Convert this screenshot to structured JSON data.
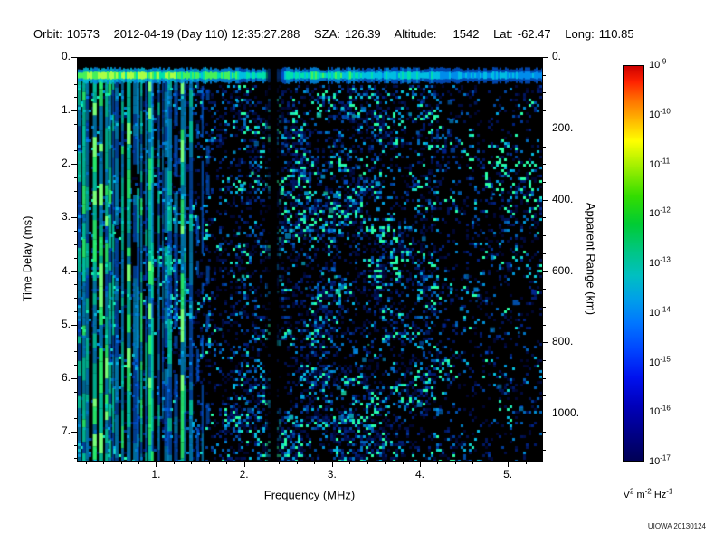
{
  "header": {
    "orbit_label": "Orbit:",
    "orbit_value": "10573",
    "datetime": "2012-04-19 (Day 110) 12:35:27.288",
    "sza_label": "SZA:",
    "sza_value": "126.39",
    "altitude_label": "Altitude:",
    "altitude_value": "1542",
    "lat_label": "Lat:",
    "lat_value": "-62.47",
    "long_label": "Long:",
    "long_value": "110.85"
  },
  "chart_data": {
    "type": "heatmap",
    "title": "",
    "xlabel": "Frequency (MHz)",
    "ylabel_left": "Time Delay (ms)",
    "ylabel_right": "Apparent Range (km)",
    "x_range_mhz": [
      0.1,
      5.4
    ],
    "y_range_ms": [
      0.0,
      7.56
    ],
    "y_right_range_km": [
      0,
      1134
    ],
    "range_per_ms_km": 150,
    "grid": false,
    "x_tick_labels": [
      "1.",
      "2.",
      "3.",
      "4.",
      "5."
    ],
    "x_tick_values": [
      1,
      2,
      3,
      4,
      5
    ],
    "x_minor_step_mhz": 0.2,
    "y_tick_labels": [
      "0.",
      "1.",
      "2.",
      "3.",
      "4.",
      "5.",
      "6.",
      "7."
    ],
    "y_tick_values": [
      0,
      1,
      2,
      3,
      4,
      5,
      6,
      7
    ],
    "y_minor_step_ms": 0.25,
    "y_right_tick_labels": [
      "0.",
      "200.",
      "400.",
      "600.",
      "800.",
      "1000."
    ],
    "y_right_tick_values": [
      0,
      200,
      400,
      600,
      800,
      1000
    ],
    "y_right_minor_step_km": 50,
    "spectrogram": {
      "seed": 7,
      "background_color": "#000000",
      "surface_echo_band": {
        "delay_ms_center": 0.33,
        "thickness_ms": 0.18,
        "description": "Bright green/cyan horizontal echo trace spanning all frequencies near zero time delay"
      },
      "plasma_lines": {
        "freq_range_mhz": [
          0.1,
          1.65
        ],
        "description": "Dense vertical green/cyan electron plasma oscillation harmonic stripes at low frequencies extending over the full delay range"
      },
      "attenuation_gap_mhz": 2.33,
      "noise_description": "Speckled blue background noise, densest between 1.7 and 4 MHz, sparse and dim above 4 MHz, black above the echo trace"
    },
    "colorbar": {
      "scale": "log",
      "tick_base": "10",
      "tick_exponents": [
        "-9",
        "-10",
        "-11",
        "-12",
        "-13",
        "-14",
        "-15",
        "-16",
        "-17"
      ],
      "unit_parts": [
        {
          "text": "V",
          "sup": false
        },
        {
          "text": "2",
          "sup": true
        },
        {
          "text": " m",
          "sup": false
        },
        {
          "text": "-2",
          "sup": true
        },
        {
          "text": " Hz",
          "sup": false
        },
        {
          "text": "-1",
          "sup": true
        }
      ],
      "gradient": [
        {
          "pos": 0,
          "color": "#cc0000"
        },
        {
          "pos": 4,
          "color": "#ff2200"
        },
        {
          "pos": 9,
          "color": "#ff7700"
        },
        {
          "pos": 14,
          "color": "#ffbb00"
        },
        {
          "pos": 19,
          "color": "#ffff00"
        },
        {
          "pos": 26,
          "color": "#99ee00"
        },
        {
          "pos": 33,
          "color": "#33dd00"
        },
        {
          "pos": 40,
          "color": "#00cc33"
        },
        {
          "pos": 47,
          "color": "#00c684"
        },
        {
          "pos": 53,
          "color": "#00c0c0"
        },
        {
          "pos": 59,
          "color": "#00a0e8"
        },
        {
          "pos": 65,
          "color": "#0077ff"
        },
        {
          "pos": 72,
          "color": "#0044ff"
        },
        {
          "pos": 79,
          "color": "#0011ee"
        },
        {
          "pos": 86,
          "color": "#0000bb"
        },
        {
          "pos": 93,
          "color": "#000088"
        },
        {
          "pos": 100,
          "color": "#000055"
        }
      ]
    }
  },
  "watermark": "UIOWA 20130124"
}
